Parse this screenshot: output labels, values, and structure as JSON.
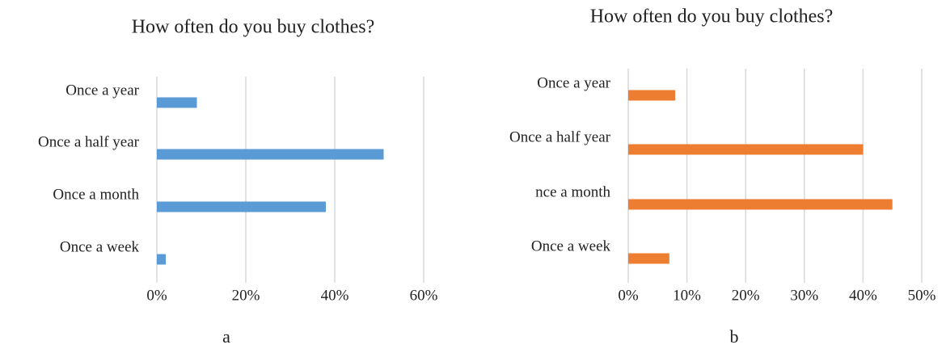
{
  "chart_data": [
    {
      "type": "hbar",
      "title": "How often do you buy clothes?",
      "caption": "a",
      "categories": [
        "Once a year",
        "Once a half year",
        "Once a month",
        "Once a week"
      ],
      "values": [
        9,
        51,
        38,
        2
      ],
      "color": "#5b9bd5",
      "xlim": [
        0,
        60
      ],
      "xticks": [
        {
          "value": 0,
          "label": "0%"
        },
        {
          "value": 20,
          "label": "20%"
        },
        {
          "value": 40,
          "label": "40%"
        },
        {
          "value": 60,
          "label": "60%"
        }
      ],
      "grid": true
    },
    {
      "type": "hbar",
      "title": "How often do you buy clothes?",
      "caption": "b",
      "categories": [
        "Once a year",
        "Once a half year",
        "nce a month",
        "Once a week"
      ],
      "values": [
        8,
        40,
        45,
        7
      ],
      "color": "#ed7d31",
      "xlim": [
        0,
        50
      ],
      "xticks": [
        {
          "value": 0,
          "label": "0%"
        },
        {
          "value": 10,
          "label": "10%"
        },
        {
          "value": 20,
          "label": "20%"
        },
        {
          "value": 30,
          "label": "30%"
        },
        {
          "value": 40,
          "label": "40%"
        },
        {
          "value": 50,
          "label": "50%"
        }
      ],
      "grid": true
    }
  ]
}
